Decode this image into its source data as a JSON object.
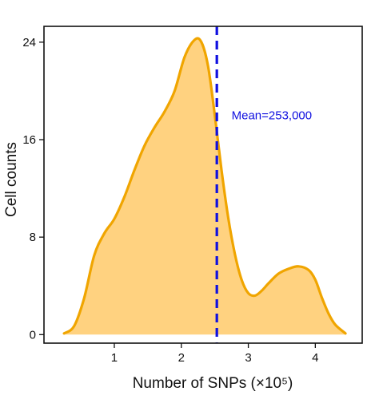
{
  "chart_data": {
    "type": "area",
    "title": "",
    "xlabel": "Number of SNPs (×10⁵)",
    "ylabel": "Cell counts",
    "xlim": [
      -0.05,
      4.7
    ],
    "ylim": [
      -0.7,
      25.3
    ],
    "x_ticks": [
      1,
      2,
      3,
      4
    ],
    "x_tick_labels": [
      "1",
      "2",
      "3",
      "4"
    ],
    "y_ticks": [
      0,
      8,
      16,
      24
    ],
    "y_tick_labels": [
      "0",
      "8",
      "16",
      "24"
    ],
    "grid": false,
    "legend": "none",
    "fill_color": "#FFD280",
    "line_color": "#F0A500",
    "mean_line_color": "#1010E0",
    "mean_x": 2.53,
    "annotation": {
      "text": "Mean=253,000",
      "x": 2.75,
      "y": 18
    },
    "series": [
      {
        "x": [
          0.25,
          0.4,
          0.55,
          0.7,
          0.85,
          1.0,
          1.15,
          1.3,
          1.45,
          1.6,
          1.75,
          1.9,
          2.05,
          2.2,
          2.3,
          2.4,
          2.5,
          2.6,
          2.7,
          2.8,
          2.9,
          3.0,
          3.1,
          3.2,
          3.3,
          3.45,
          3.6,
          3.75,
          3.9,
          4.0,
          4.1,
          4.2,
          4.3,
          4.45
        ],
        "y": [
          0.1,
          0.7,
          3.0,
          6.5,
          8.3,
          9.5,
          11.3,
          13.5,
          15.5,
          17.0,
          18.3,
          20.0,
          22.8,
          24.2,
          24.0,
          22.0,
          18.0,
          13.5,
          9.6,
          6.6,
          4.5,
          3.4,
          3.2,
          3.6,
          4.2,
          5.0,
          5.4,
          5.6,
          5.3,
          4.5,
          3.0,
          1.7,
          0.8,
          0.1
        ]
      }
    ]
  }
}
